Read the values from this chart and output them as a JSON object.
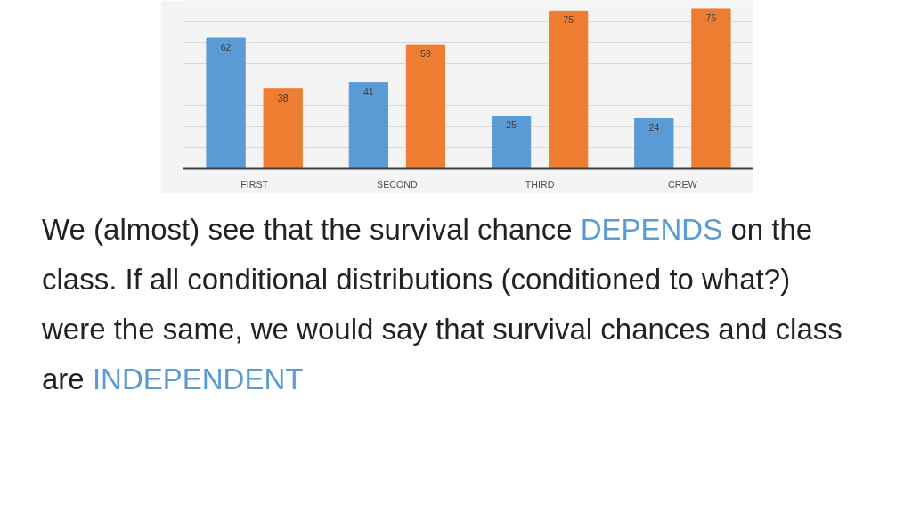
{
  "chart_data": {
    "type": "bar",
    "categories": [
      "FIRST",
      "SECOND",
      "THIRD",
      "CREW"
    ],
    "series": [
      {
        "color": "#5b9bd5",
        "values": [
          62,
          41,
          25,
          24
        ]
      },
      {
        "color": "#ed7d31",
        "values": [
          38,
          59,
          75,
          76
        ]
      }
    ],
    "ylim": [
      0,
      80
    ],
    "yticks": [
      {
        "value": 0,
        "label": null
      },
      {
        "value": 10,
        "label": null
      },
      {
        "value": 20,
        "label": null
      },
      {
        "value": 30,
        "label": null
      },
      {
        "value": 40,
        "label": null
      },
      {
        "value": 50,
        "label": null
      },
      {
        "value": 60,
        "label": null
      },
      {
        "value": 70,
        "label": null
      },
      {
        "value": 80,
        "label": null
      }
    ],
    "grid": "y",
    "data_labels": true,
    "tick_labels": "x",
    "annotations": [
      "We (almost) see that the survival chance",
      "DEPENDS",
      "on the class. If all conditional distributions (conditioned to what?) were the same, we would say that survival chances and class are",
      "INDEPENDENT"
    ]
  }
}
